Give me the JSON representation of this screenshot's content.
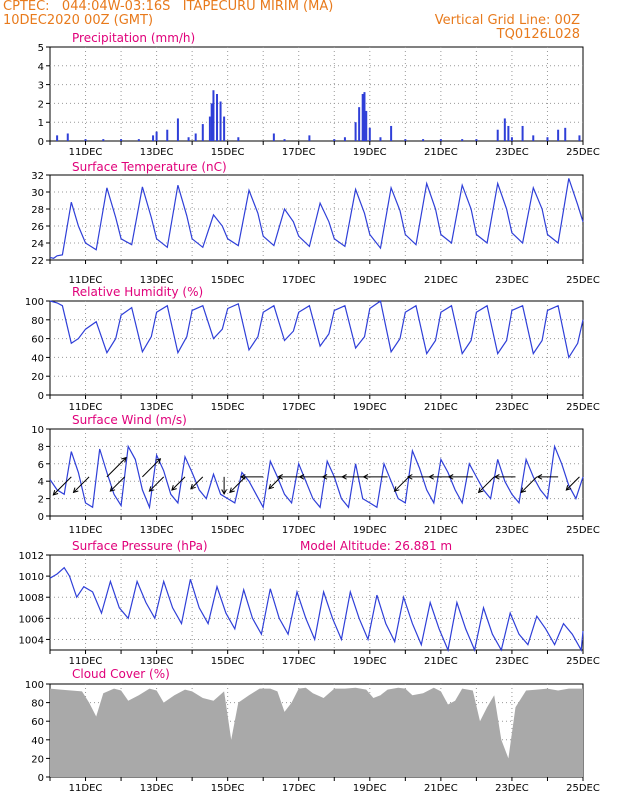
{
  "header": {
    "line1_left": "CPTEC:   044:04W-03:16S   ITAPECURU MIRIM (MA)",
    "line2_left": "10DEC2020 00Z (GMT)",
    "line2_right": "Vertical Grid Line: 00Z",
    "line3_right": "TQ0126L028"
  },
  "colors": {
    "header": "#e87a1c",
    "title": "#e0007a",
    "line": "#2f3fd8",
    "cloud": "#a9a9a9",
    "grid": "#999999"
  },
  "x_axis": {
    "ticks": [
      "11DEC",
      "13DEC",
      "15DEC",
      "17DEC",
      "19DEC",
      "21DEC",
      "23DEC",
      "25DEC"
    ],
    "tick_days": [
      11,
      13,
      15,
      17,
      19,
      21,
      23,
      25
    ],
    "start_day": 10,
    "end_day": 25
  },
  "chart_data": [
    {
      "id": "precip",
      "type": "bar",
      "title": "Precipitation (mm/h)",
      "ylim": [
        0,
        5
      ],
      "yticks": [
        "0",
        "1",
        "2",
        "3",
        "4",
        "5"
      ],
      "x": [
        10.2,
        10.5,
        11.0,
        11.5,
        12.0,
        12.5,
        12.9,
        13.0,
        13.3,
        13.6,
        13.9,
        14.1,
        14.3,
        14.5,
        14.55,
        14.6,
        14.7,
        14.8,
        14.9,
        15.3,
        16.3,
        16.6,
        17.3,
        18.0,
        18.3,
        18.6,
        18.7,
        18.8,
        18.85,
        18.9,
        19.0,
        19.3,
        19.6,
        20.0,
        20.5,
        21.0,
        21.6,
        22.0,
        22.6,
        22.8,
        22.9,
        23.0,
        23.3,
        23.6,
        24.0,
        24.3,
        24.5,
        24.9
      ],
      "values": [
        0.3,
        0.4,
        0.1,
        0.1,
        0.1,
        0.1,
        0.3,
        0.5,
        0.6,
        1.2,
        0.2,
        0.4,
        0.9,
        1.3,
        2.0,
        2.7,
        2.5,
        2.1,
        1.3,
        0.2,
        0.4,
        0.1,
        0.3,
        0.1,
        0.2,
        1.0,
        1.8,
        2.5,
        2.6,
        1.6,
        0.7,
        0.2,
        0.8,
        0.1,
        0.1,
        0.1,
        0.1,
        0.1,
        0.6,
        1.2,
        0.8,
        0.2,
        0.8,
        0.3,
        0.2,
        0.6,
        0.7,
        0.3
      ]
    },
    {
      "id": "temp",
      "type": "line",
      "title": "Surface Temperature (nC)",
      "ylim": [
        22,
        32
      ],
      "yticks": [
        "22",
        "24",
        "26",
        "28",
        "30",
        "32"
      ],
      "x": [
        10.0,
        10.1,
        10.2,
        10.35,
        10.6,
        10.8,
        11.0,
        11.3,
        11.6,
        11.85,
        12.0,
        12.3,
        12.6,
        12.85,
        13.0,
        13.3,
        13.6,
        13.85,
        14.0,
        14.3,
        14.6,
        14.85,
        15.0,
        15.3,
        15.6,
        15.85,
        16.0,
        16.3,
        16.6,
        16.85,
        17.0,
        17.3,
        17.6,
        17.85,
        18.0,
        18.3,
        18.6,
        18.85,
        19.0,
        19.3,
        19.6,
        19.85,
        20.0,
        20.3,
        20.6,
        20.85,
        21.0,
        21.3,
        21.6,
        21.85,
        22.0,
        22.3,
        22.6,
        22.85,
        23.0,
        23.3,
        23.6,
        23.85,
        24.0,
        24.3,
        24.6,
        24.85,
        25.0
      ],
      "values": [
        22.3,
        22.2,
        22.5,
        22.6,
        28.8,
        26.0,
        24.0,
        23.2,
        30.5,
        27.0,
        24.5,
        23.8,
        30.6,
        27.0,
        24.5,
        23.5,
        30.8,
        27.2,
        24.5,
        23.5,
        27.3,
        26.0,
        24.5,
        23.7,
        30.2,
        27.5,
        24.8,
        23.7,
        28.0,
        26.5,
        24.8,
        23.6,
        28.7,
        26.5,
        24.5,
        23.6,
        30.3,
        27.5,
        25.0,
        23.4,
        30.5,
        27.8,
        25.0,
        23.8,
        31.0,
        28.0,
        25.0,
        24.0,
        30.8,
        28.0,
        25.0,
        24.0,
        31.0,
        28.0,
        25.2,
        24.0,
        30.5,
        28.0,
        25.0,
        24.0,
        31.6,
        28.5,
        26.5
      ]
    },
    {
      "id": "rh",
      "type": "line",
      "title": "Relative Humidity (%)",
      "ylim": [
        0,
        100
      ],
      "yticks": [
        "0",
        "20",
        "40",
        "60",
        "80",
        "100"
      ],
      "x": [
        10.0,
        10.2,
        10.35,
        10.6,
        10.8,
        11.0,
        11.3,
        11.6,
        11.85,
        12.0,
        12.3,
        12.6,
        12.85,
        13.0,
        13.3,
        13.6,
        13.85,
        14.0,
        14.3,
        14.6,
        14.85,
        15.0,
        15.3,
        15.6,
        15.85,
        16.0,
        16.3,
        16.6,
        16.85,
        17.0,
        17.3,
        17.6,
        17.85,
        18.0,
        18.3,
        18.6,
        18.85,
        19.0,
        19.3,
        19.6,
        19.85,
        20.0,
        20.3,
        20.6,
        20.85,
        21.0,
        21.3,
        21.6,
        21.85,
        22.0,
        22.3,
        22.6,
        22.85,
        23.0,
        23.3,
        23.6,
        23.85,
        24.0,
        24.3,
        24.6,
        24.85,
        25.0
      ],
      "values": [
        100,
        98,
        95,
        55,
        60,
        70,
        78,
        45,
        60,
        85,
        93,
        46,
        62,
        88,
        95,
        45,
        62,
        90,
        95,
        60,
        70,
        92,
        97,
        48,
        62,
        88,
        95,
        58,
        68,
        88,
        95,
        52,
        65,
        90,
        95,
        50,
        62,
        92,
        100,
        46,
        60,
        88,
        95,
        44,
        58,
        88,
        95,
        44,
        58,
        88,
        95,
        44,
        58,
        90,
        95,
        44,
        58,
        90,
        95,
        40,
        55,
        80
      ]
    },
    {
      "id": "wind",
      "type": "line",
      "title": "Surface Wind (m/s)",
      "ylim": [
        0,
        10
      ],
      "yticks": [
        "0",
        "2",
        "4",
        "6",
        "8",
        "10"
      ],
      "x": [
        10.0,
        10.2,
        10.4,
        10.6,
        10.8,
        11.0,
        11.2,
        11.4,
        11.6,
        11.8,
        12.0,
        12.2,
        12.4,
        12.6,
        12.8,
        13.0,
        13.2,
        13.4,
        13.6,
        13.8,
        14.0,
        14.2,
        14.4,
        14.6,
        14.8,
        15.0,
        15.2,
        15.4,
        15.6,
        15.8,
        16.0,
        16.2,
        16.4,
        16.6,
        16.8,
        17.0,
        17.2,
        17.4,
        17.6,
        17.8,
        18.0,
        18.2,
        18.4,
        18.6,
        18.8,
        19.0,
        19.2,
        19.4,
        19.6,
        19.8,
        20.0,
        20.2,
        20.4,
        20.6,
        20.8,
        21.0,
        21.2,
        21.4,
        21.6,
        21.8,
        22.0,
        22.2,
        22.4,
        22.6,
        22.8,
        23.0,
        23.2,
        23.4,
        23.6,
        23.8,
        24.0,
        24.2,
        24.4,
        24.6,
        24.8,
        25.0
      ],
      "values": [
        4.2,
        3.0,
        2.5,
        7.4,
        5.0,
        1.5,
        1.0,
        7.7,
        5.0,
        2.5,
        1.2,
        8.0,
        6.5,
        3.0,
        1.0,
        7.0,
        5.2,
        2.5,
        1.5,
        6.8,
        5.0,
        3.0,
        2.0,
        4.8,
        2.5,
        2.0,
        1.5,
        5.0,
        4.0,
        2.5,
        1.0,
        6.3,
        4.5,
        2.5,
        1.5,
        6.0,
        4.0,
        2.0,
        1.0,
        6.3,
        4.5,
        2.0,
        1.0,
        6.0,
        2.0,
        1.5,
        1.0,
        6.0,
        4.0,
        2.0,
        1.5,
        7.5,
        5.5,
        3.0,
        1.5,
        6.5,
        5.0,
        3.0,
        1.5,
        6.0,
        4.5,
        3.0,
        2.0,
        6.5,
        4.0,
        2.5,
        1.5,
        6.5,
        4.5,
        3.0,
        2.0,
        8.0,
        6.0,
        3.5,
        2.0,
        4.5
      ],
      "arrows": [
        {
          "day": 10.6,
          "speed": 4.5,
          "dir": "SW"
        },
        {
          "day": 11.1,
          "speed": 3.5,
          "dir": "SW"
        },
        {
          "day": 11.6,
          "speed": 5.0,
          "dir": "NE"
        },
        {
          "day": 12.1,
          "speed": 3.0,
          "dir": "SW"
        },
        {
          "day": 12.6,
          "speed": 4.5,
          "dir": "NE"
        },
        {
          "day": 13.2,
          "speed": 3.0,
          "dir": "SW"
        },
        {
          "day": 13.8,
          "speed": 2.5,
          "dir": "SW"
        },
        {
          "day": 14.3,
          "speed": 2.0,
          "dir": "SW"
        },
        {
          "day": 14.9,
          "speed": 2.0,
          "dir": "S"
        },
        {
          "day": 15.5,
          "speed": 3.5,
          "dir": "SW"
        },
        {
          "day": 16.0,
          "speed": 3.5,
          "dir": "W"
        },
        {
          "day": 16.5,
          "speed": 2.0,
          "dir": "SW"
        },
        {
          "day": 17.1,
          "speed": 4.0,
          "dir": "W"
        },
        {
          "day": 17.7,
          "speed": 4.0,
          "dir": "W"
        },
        {
          "day": 18.3,
          "speed": 3.5,
          "dir": "W"
        },
        {
          "day": 18.9,
          "speed": 4.0,
          "dir": "W"
        },
        {
          "day": 19.5,
          "speed": 4.0,
          "dir": "W"
        },
        {
          "day": 20.1,
          "speed": 3.0,
          "dir": "SW"
        },
        {
          "day": 20.7,
          "speed": 3.5,
          "dir": "W"
        },
        {
          "day": 21.3,
          "speed": 3.5,
          "dir": "W"
        },
        {
          "day": 21.9,
          "speed": 4.0,
          "dir": "W"
        },
        {
          "day": 22.5,
          "speed": 3.5,
          "dir": "SW"
        },
        {
          "day": 23.1,
          "speed": 3.0,
          "dir": "W"
        },
        {
          "day": 23.7,
          "speed": 3.5,
          "dir": "SW"
        },
        {
          "day": 24.3,
          "speed": 3.0,
          "dir": "W"
        },
        {
          "day": 24.9,
          "speed": 2.5,
          "dir": "SW"
        }
      ]
    },
    {
      "id": "press",
      "type": "line",
      "title": "Surface Pressure (hPa)",
      "subtitle": "Model Altitude: 26.881 m",
      "ylim": [
        1003,
        1012
      ],
      "yticks": [
        "1004",
        "1006",
        "1008",
        "1010",
        "1012"
      ],
      "ytick_values": [
        1004,
        1006,
        1008,
        1010,
        1012
      ],
      "x": [
        10.0,
        10.2,
        10.4,
        10.55,
        10.75,
        10.95,
        11.2,
        11.45,
        11.7,
        11.95,
        12.2,
        12.45,
        12.7,
        12.95,
        13.2,
        13.45,
        13.7,
        13.95,
        14.2,
        14.45,
        14.7,
        14.95,
        15.2,
        15.45,
        15.7,
        15.95,
        16.2,
        16.45,
        16.7,
        16.95,
        17.2,
        17.45,
        17.7,
        17.95,
        18.2,
        18.45,
        18.7,
        18.95,
        19.2,
        19.45,
        19.7,
        19.95,
        20.2,
        20.45,
        20.7,
        20.95,
        21.2,
        21.45,
        21.7,
        21.95,
        22.2,
        22.45,
        22.7,
        22.95,
        23.2,
        23.45,
        23.7,
        23.95,
        24.2,
        24.45,
        24.7,
        24.95,
        25.0
      ],
      "values": [
        1009.8,
        1010.2,
        1010.8,
        1010.0,
        1008.0,
        1009.0,
        1008.5,
        1006.5,
        1009.5,
        1007.0,
        1006.0,
        1009.5,
        1007.5,
        1006.0,
        1009.5,
        1007.0,
        1005.5,
        1009.7,
        1007.0,
        1005.5,
        1009.0,
        1006.5,
        1005.0,
        1008.7,
        1006.0,
        1004.5,
        1008.8,
        1006.0,
        1004.5,
        1008.5,
        1006.0,
        1004.0,
        1008.5,
        1006.0,
        1004.0,
        1008.5,
        1006.0,
        1004.0,
        1008.2,
        1005.5,
        1003.8,
        1008.0,
        1005.5,
        1003.5,
        1007.5,
        1005.0,
        1003.0,
        1007.5,
        1005.0,
        1003.0,
        1007.0,
        1004.5,
        1003.0,
        1006.5,
        1004.5,
        1003.5,
        1006.2,
        1005.0,
        1003.5,
        1005.5,
        1004.5,
        1003.0,
        1004.8
      ]
    },
    {
      "id": "cloud",
      "type": "area",
      "title": "Cloud Cover (%)",
      "ylim": [
        0,
        100
      ],
      "yticks": [
        "0",
        "20",
        "40",
        "60",
        "80",
        "100"
      ],
      "x": [
        10.0,
        10.3,
        10.6,
        10.9,
        11.1,
        11.3,
        11.5,
        11.8,
        12.0,
        12.2,
        12.5,
        12.8,
        13.0,
        13.2,
        13.5,
        13.8,
        14.0,
        14.3,
        14.6,
        14.9,
        15.1,
        15.3,
        15.6,
        15.9,
        16.2,
        16.4,
        16.6,
        16.8,
        17.0,
        17.2,
        17.4,
        17.7,
        18.0,
        18.3,
        18.6,
        18.9,
        19.1,
        19.3,
        19.5,
        19.8,
        20.0,
        20.2,
        20.5,
        20.8,
        21.0,
        21.2,
        21.4,
        21.6,
        21.9,
        22.1,
        22.3,
        22.5,
        22.7,
        22.9,
        23.1,
        23.4,
        23.7,
        24.0,
        24.3,
        24.6,
        25.0
      ],
      "values": [
        95,
        94,
        93,
        92,
        80,
        65,
        90,
        95,
        93,
        82,
        88,
        95,
        93,
        80,
        88,
        94,
        92,
        85,
        82,
        92,
        40,
        80,
        88,
        95,
        95,
        92,
        70,
        80,
        95,
        96,
        90,
        85,
        95,
        95,
        96,
        94,
        85,
        88,
        94,
        96,
        95,
        88,
        90,
        96,
        92,
        78,
        82,
        95,
        93,
        60,
        75,
        88,
        40,
        20,
        75,
        93,
        94,
        95,
        93,
        95,
        95
      ]
    }
  ]
}
